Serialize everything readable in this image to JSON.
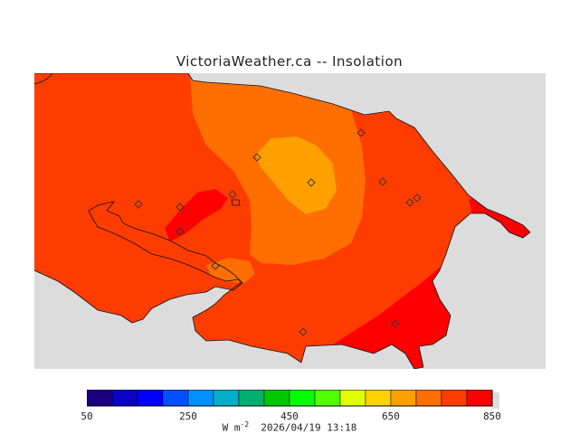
{
  "title": "VictoriaWeather.ca -- Insolation",
  "colorbar": {
    "colors": [
      "#1a0080",
      "#0a00c8",
      "#0000ff",
      "#0050ff",
      "#0090ff",
      "#00b0c8",
      "#00b070",
      "#00c800",
      "#00ff00",
      "#50ff00",
      "#e0ff00",
      "#ffd200",
      "#ffa000",
      "#ff6e00",
      "#ff3c00",
      "#ff0000"
    ],
    "tick_labels": [
      "50",
      "250",
      "450",
      "650",
      "850"
    ]
  },
  "map_colors": {
    "water": "#dcdcdc",
    "band_750_800": "#ff3c00",
    "band_700_750": "#ff6e00",
    "band_650_700": "#ffa000",
    "band_800_850": "#ff0000"
  },
  "footer": {
    "units": "W m",
    "exponent": "-2",
    "timestamp": "2026/04/19 13:18"
  }
}
